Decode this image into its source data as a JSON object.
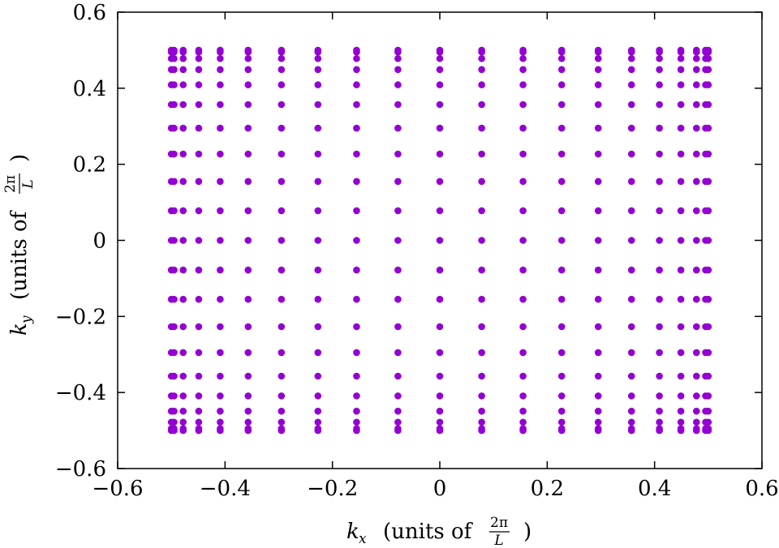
{
  "chart_data": {
    "type": "scatter",
    "title": "",
    "xlabel": {
      "var": "k",
      "sub": "x",
      "text": "(units of",
      "frac_num": "2π",
      "frac_den": "L",
      "close": ")"
    },
    "ylabel": {
      "var": "k",
      "sub": "y",
      "text": "(units of",
      "frac_num": "2π",
      "frac_den": "L",
      "close": ")"
    },
    "xlim": [
      -0.6,
      0.6
    ],
    "ylim": [
      -0.6,
      0.6
    ],
    "xticks": [
      -0.6,
      -0.4,
      -0.2,
      0,
      0.2,
      0.4,
      0.6
    ],
    "yticks": [
      -0.6,
      -0.4,
      -0.2,
      0,
      0.2,
      0.4,
      0.6
    ],
    "xtick_labels": [
      "−0.6",
      "−0.4",
      "−0.2",
      "0",
      "0.2",
      "0.4",
      "0.6"
    ],
    "ytick_labels": [
      "−0.6",
      "−0.4",
      "−0.2",
      "0",
      "0.2",
      "0.4",
      "0.6"
    ],
    "grid": false,
    "legend": "none",
    "marker_color": "#9400d3",
    "series": [
      {
        "x": [
          -0.5,
          -0.495,
          -0.478,
          -0.449,
          -0.409,
          -0.357,
          -0.295,
          -0.227,
          -0.155,
          -0.078,
          0,
          0.078,
          0.155,
          0.227,
          0.295,
          0.357,
          0.409,
          0.449,
          0.478,
          0.495,
          0.5
        ],
        "y": [
          -0.5,
          -0.495,
          -0.478,
          -0.449,
          -0.409,
          -0.357,
          -0.295,
          -0.227,
          -0.155,
          -0.078,
          0,
          0.078,
          0.155,
          0.227,
          0.295,
          0.357,
          0.409,
          0.449,
          0.478,
          0.495,
          0.5
        ],
        "grid_product": true
      }
    ]
  }
}
